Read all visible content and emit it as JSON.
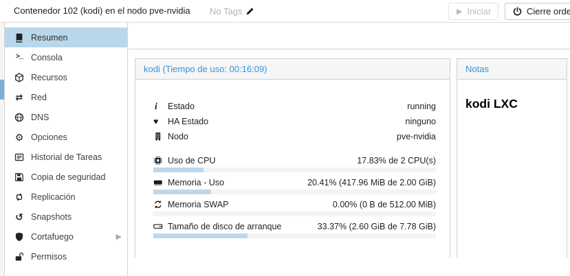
{
  "top_bar": {
    "title": "Contenedor 102 (kodi) en el nodo pve-nvidia",
    "tags_label": "No Tags",
    "start_button": "Iniciar",
    "shutdown_button": "Cierre ordenado"
  },
  "sidebar": {
    "items": [
      {
        "label": "Resumen",
        "icon": "book-icon",
        "selected": true
      },
      {
        "label": "Consola",
        "icon": "terminal-icon"
      },
      {
        "label": "Recursos",
        "icon": "cube-icon"
      },
      {
        "label": "Red",
        "icon": "network-icon"
      },
      {
        "label": "DNS",
        "icon": "globe-icon"
      },
      {
        "label": "Opciones",
        "icon": "gear-icon"
      },
      {
        "label": "Historial de Tareas",
        "icon": "task-list-icon"
      },
      {
        "label": "Copia de seguridad",
        "icon": "floppy-icon"
      },
      {
        "label": "Replicación",
        "icon": "replication-icon"
      },
      {
        "label": "Snapshots",
        "icon": "history-icon"
      },
      {
        "label": "Cortafuego",
        "icon": "shield-icon",
        "has_submenu": true
      },
      {
        "label": "Permisos",
        "icon": "unlock-icon"
      }
    ]
  },
  "status_panel": {
    "title": "kodi (Tiempo de uso: 00:16:09)",
    "rows": [
      {
        "icon": "info-icon",
        "label": "Estado",
        "value": "running"
      },
      {
        "icon": "heartbeat-icon",
        "label": "HA Estado",
        "value": "ninguno"
      },
      {
        "icon": "building-icon",
        "label": "Nodo",
        "value": "pve-nvidia"
      }
    ],
    "usage_rows": [
      {
        "icon": "cpu-icon",
        "label": "Uso de CPU",
        "value": "17.83% de 2 CPU(s)",
        "percent": 17.83
      },
      {
        "icon": "memory-icon",
        "label": "Memoria - Uso",
        "value": "20.41% (417.96 MiB de 2.00 GiB)",
        "percent": 20.41
      },
      {
        "icon": "swap-icon",
        "label": "Memoria SWAP",
        "value": "0.00% (0 B de 512.00 MiB)",
        "percent": 0
      },
      {
        "icon": "disk-icon",
        "label": "Tamaño de disco de arranque",
        "value": "33.37% (2.60 GiB de 7.78 GiB)",
        "percent": 33.37
      }
    ]
  },
  "notes_panel": {
    "title": "Notas",
    "content": "kodi LXC"
  },
  "colors": {
    "accent_blue": "#3892d4",
    "sidebar_selected_bg": "#b9d7eb",
    "tree_selected_bg": "#7cb0d9",
    "progress_fill": "#bdd8ed",
    "progress_track": "#f4f4f4",
    "muted_text": "#b5b5b5"
  }
}
